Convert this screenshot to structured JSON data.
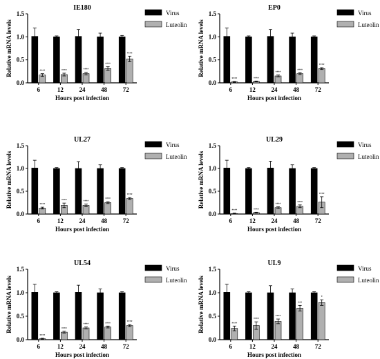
{
  "chart_data": [
    {
      "type": "bar",
      "title": "IE180",
      "xlabel": "Hours post infection",
      "ylabel": "Relative mRNA levels",
      "categories": [
        "6",
        "12",
        "24",
        "48",
        "72"
      ],
      "ylim": [
        0,
        1.5
      ],
      "yticks": [
        "0.0",
        "0.5",
        "1.0",
        "1.5"
      ],
      "legend_position": "top-right",
      "series": [
        {
          "name": "Virus",
          "color": "#000000",
          "values": [
            1.01,
            1.0,
            1.01,
            1.0,
            1.0
          ],
          "errors": [
            0.18,
            0.02,
            0.15,
            0.08,
            0.03
          ],
          "labels": [
            "",
            "",
            "",
            "",
            ""
          ]
        },
        {
          "name": "Luteolin",
          "color": "#b0b0b0",
          "values": [
            0.17,
            0.18,
            0.2,
            0.31,
            0.52
          ],
          "errors": [
            0.03,
            0.03,
            0.03,
            0.04,
            0.06
          ],
          "labels": [
            "****",
            "****",
            "****",
            "****",
            "****"
          ]
        }
      ]
    },
    {
      "type": "bar",
      "title": "EP0",
      "xlabel": "Hours post infection",
      "ylabel": "Relative mRNA levels",
      "categories": [
        "6",
        "12",
        "24",
        "48",
        "72"
      ],
      "ylim": [
        0,
        1.5
      ],
      "yticks": [
        "0.0",
        "0.5",
        "1.0",
        "1.5"
      ],
      "legend_position": "top-right",
      "series": [
        {
          "name": "Virus",
          "color": "#000000",
          "values": [
            1.01,
            1.0,
            1.01,
            1.0,
            1.0
          ],
          "errors": [
            0.18,
            0.02,
            0.15,
            0.08,
            0.02
          ],
          "labels": [
            "",
            "",
            "",
            "",
            ""
          ]
        },
        {
          "name": "Luteolin",
          "color": "#b0b0b0",
          "values": [
            0.02,
            0.03,
            0.15,
            0.2,
            0.31
          ],
          "errors": [
            0.01,
            0.01,
            0.02,
            0.02,
            0.02
          ],
          "labels": [
            "****",
            "****",
            "****",
            "****",
            "****"
          ]
        }
      ]
    },
    {
      "type": "bar",
      "title": "UL27",
      "xlabel": "Hours post infection",
      "ylabel": "Relative mRNA levels",
      "categories": [
        "6",
        "12",
        "24",
        "48",
        "72"
      ],
      "ylim": [
        0,
        1.5
      ],
      "yticks": [
        "0.0",
        "0.5",
        "1.0",
        "1.5"
      ],
      "legend_position": "top-right",
      "series": [
        {
          "name": "Virus",
          "color": "#000000",
          "values": [
            1.01,
            1.0,
            1.0,
            1.0,
            1.0
          ],
          "errors": [
            0.17,
            0.02,
            0.15,
            0.08,
            0.02
          ],
          "labels": [
            "",
            "",
            "",
            "",
            ""
          ]
        },
        {
          "name": "Luteolin",
          "color": "#b0b0b0",
          "values": [
            0.13,
            0.19,
            0.19,
            0.25,
            0.34
          ],
          "errors": [
            0.02,
            0.05,
            0.03,
            0.02,
            0.02
          ],
          "labels": [
            "****",
            "****",
            "****",
            "****",
            "****"
          ]
        }
      ]
    },
    {
      "type": "bar",
      "title": "UL29",
      "xlabel": "Hours post infection",
      "ylabel": "Relative mRNA levels",
      "categories": [
        "6",
        "12",
        "24",
        "48",
        "72"
      ],
      "ylim": [
        0,
        1.5
      ],
      "yticks": [
        "0.0",
        "0.5",
        "1.0",
        "1.5"
      ],
      "legend_position": "top-right",
      "series": [
        {
          "name": "Virus",
          "color": "#000000",
          "values": [
            1.01,
            1.0,
            1.01,
            1.0,
            1.0
          ],
          "errors": [
            0.17,
            0.02,
            0.15,
            0.08,
            0.02
          ],
          "labels": [
            "",
            "",
            "",
            "",
            ""
          ]
        },
        {
          "name": "Luteolin",
          "color": "#b0b0b0",
          "values": [
            0.01,
            0.03,
            0.14,
            0.17,
            0.26
          ],
          "errors": [
            0.01,
            0.01,
            0.02,
            0.03,
            0.12
          ],
          "labels": [
            "****",
            "****",
            "****",
            "****",
            "****"
          ]
        }
      ]
    },
    {
      "type": "bar",
      "title": "UL54",
      "xlabel": "Hours post infection",
      "ylabel": "Relative mRNA levels",
      "categories": [
        "6",
        "12",
        "24",
        "48",
        "72"
      ],
      "ylim": [
        0,
        1.5
      ],
      "yticks": [
        "0.0",
        "0.5",
        "1.0",
        "1.5"
      ],
      "legend_position": "top-right",
      "series": [
        {
          "name": "Virus",
          "color": "#000000",
          "values": [
            1.01,
            1.0,
            1.01,
            1.0,
            1.0
          ],
          "errors": [
            0.17,
            0.02,
            0.15,
            0.08,
            0.02
          ],
          "labels": [
            "",
            "",
            "",
            "",
            ""
          ]
        },
        {
          "name": "Luteolin",
          "color": "#b0b0b0",
          "values": [
            0.02,
            0.16,
            0.25,
            0.27,
            0.3
          ],
          "errors": [
            0.01,
            0.02,
            0.02,
            0.02,
            0.02
          ],
          "labels": [
            "****",
            "****",
            "****",
            "****",
            "****"
          ]
        }
      ]
    },
    {
      "type": "bar",
      "title": "UL9",
      "xlabel": "Hours post infection",
      "ylabel": "Relative mRNA levels",
      "categories": [
        "6",
        "12",
        "24",
        "48",
        "72"
      ],
      "ylim": [
        0,
        1.5
      ],
      "yticks": [
        "0.0",
        "0.5",
        "1.0",
        "1.5"
      ],
      "legend_position": "top-right",
      "series": [
        {
          "name": "Virus",
          "color": "#000000",
          "values": [
            1.01,
            1.0,
            1.0,
            1.0,
            1.0
          ],
          "errors": [
            0.17,
            0.02,
            0.15,
            0.08,
            0.02
          ],
          "labels": [
            "",
            "",
            "",
            "",
            ""
          ]
        },
        {
          "name": "Luteolin",
          "color": "#b0b0b0",
          "values": [
            0.24,
            0.3,
            0.39,
            0.67,
            0.79
          ],
          "errors": [
            0.05,
            0.08,
            0.05,
            0.06,
            0.06
          ],
          "labels": [
            "****",
            "****",
            "****",
            "***",
            "*"
          ]
        }
      ]
    }
  ]
}
